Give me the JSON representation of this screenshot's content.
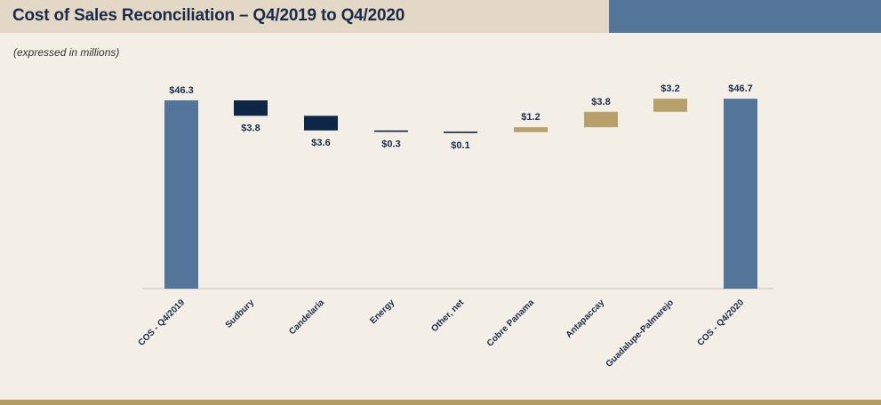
{
  "header": {
    "title": "Cost of Sales Reconciliation – Q4/2019 to Q4/2020",
    "subtitle": "(expressed in millions)"
  },
  "colors": {
    "total": "#54759a",
    "decrease": "#0e2746",
    "increase": "#b8a06b",
    "title_band": "#e2d8c5",
    "title_accent": "#54759a",
    "bottom_rule": "#b49a5e",
    "background": "#f3efe6"
  },
  "chart_data": {
    "type": "bar",
    "subtype": "waterfall",
    "categories": [
      "COS - Q4/2019",
      "Sudbury",
      "Candelaria",
      "Energy",
      "Other, net",
      "Cobre Panama",
      "Antapaccay",
      "Guadalupe-Palmarejo",
      "COS - Q4/2020"
    ],
    "values": [
      46.3,
      -3.8,
      -3.6,
      -0.3,
      -0.1,
      1.2,
      3.8,
      3.2,
      46.7
    ],
    "kinds": [
      "total",
      "decrease",
      "decrease",
      "decrease",
      "decrease",
      "increase",
      "increase",
      "increase",
      "total"
    ],
    "labels": [
      "$46.3",
      "$3.8",
      "$3.6",
      "$0.3",
      "$0.1",
      "$1.2",
      "$3.8",
      "$3.2",
      "$46.7"
    ],
    "unit": "millions",
    "grid": false,
    "legend": "none"
  }
}
